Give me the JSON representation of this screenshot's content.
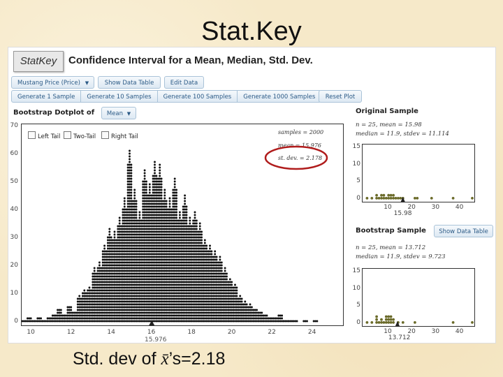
{
  "slide": {
    "title": "Stat.Key",
    "caption_prefix": "Std. dev of ",
    "caption_symbol": "x̄",
    "caption_suffix": "’s=2.18"
  },
  "app": {
    "logo": "StatKey",
    "title": "Confidence Interval for a Mean, Median, Std. Dev.",
    "dataset_select": "Mustang Price (Price)",
    "show_data_table": "Show Data Table",
    "edit_data": "Edit Data",
    "generate_buttons": [
      "Generate 1 Sample",
      "Generate 10 Samples",
      "Generate 100 Samples",
      "Generate 1000 Samples"
    ],
    "reset_plot": "Reset Plot",
    "dotplot_label": "Bootstrap Dotplot of",
    "statistic_select": "Mean",
    "tails": [
      "Left Tail",
      "Two-Tail",
      "Right Tail"
    ],
    "summary": [
      "samples = 2000",
      "mean = 15.976",
      "st. dev. = 2.178"
    ],
    "highlight_color": "#b01c1c",
    "dot_color": "#111111",
    "sample_dot_color": "#6b6b2a"
  },
  "original_sample": {
    "label": "Original Sample",
    "line1": "n = 25, mean = 15.98",
    "line2": "median = 11.9, stdev = 11.114",
    "marker": "15.98"
  },
  "bootstrap_sample": {
    "label": "Bootstrap Sample",
    "show_data_table": "Show Data Table",
    "line1": "n = 25, mean = 13.712",
    "line2": "median = 11.9, stdev = 9.723",
    "marker": "13.712"
  },
  "chart_data": [
    {
      "type": "scatter",
      "title": "",
      "x_ticks": [
        "10",
        "12",
        "14",
        "16",
        "18",
        "20",
        "22",
        "24"
      ],
      "y_ticks": [
        "0",
        "10",
        "20",
        "30",
        "40",
        "50",
        "60",
        "70"
      ],
      "xlim": [
        9.5,
        25.5
      ],
      "ylim": [
        0,
        70
      ],
      "marker_label": "15.976",
      "bin_width": 0.25,
      "bins_x": [
        9.5,
        9.75,
        10,
        10.25,
        10.5,
        10.75,
        11,
        11.25,
        11.5,
        11.75,
        12,
        12.25,
        12.5,
        12.75,
        13,
        13.25,
        13.5,
        13.75,
        14,
        14.25,
        14.5,
        14.75,
        15,
        15.25,
        15.5,
        15.75,
        16,
        16.25,
        16.5,
        16.75,
        17,
        17.25,
        17.5,
        17.75,
        18,
        18.25,
        18.5,
        18.75,
        19,
        19.25,
        19.5,
        19.75,
        20,
        20.25,
        20.5,
        20.75,
        21,
        21.25,
        21.5,
        21.75,
        22,
        22.25,
        22.5,
        22.75,
        23,
        23.25,
        23.5,
        23.75,
        24,
        24.25,
        24.5,
        24.75,
        25,
        25.25
      ],
      "counts": [
        1,
        2,
        1,
        2,
        1,
        2,
        3,
        5,
        3,
        6,
        4,
        10,
        12,
        13,
        20,
        22,
        28,
        34,
        33,
        38,
        45,
        62,
        48,
        40,
        55,
        50,
        58,
        57,
        48,
        45,
        52,
        40,
        46,
        38,
        40,
        36,
        30,
        28,
        26,
        24,
        20,
        16,
        14,
        10,
        8,
        7,
        5,
        4,
        3,
        2,
        2,
        3,
        1,
        1,
        1,
        0,
        1,
        0,
        1,
        0,
        0,
        0,
        0,
        0
      ]
    },
    {
      "type": "scatter",
      "title": "Original Sample",
      "x_ticks": [
        "10",
        "20",
        "30",
        "40"
      ],
      "y_ticks": [
        "0",
        "5",
        "10",
        "15"
      ],
      "xlim": [
        0,
        45
      ],
      "ylim": [
        0,
        15
      ],
      "points": [
        [
          1,
          1
        ],
        [
          3,
          1
        ],
        [
          5,
          1
        ],
        [
          6,
          1
        ],
        [
          7,
          1
        ],
        [
          8,
          1
        ],
        [
          9,
          1
        ],
        [
          10,
          1
        ],
        [
          11,
          1
        ],
        [
          12,
          1
        ],
        [
          13,
          1
        ],
        [
          14,
          1
        ],
        [
          15,
          1
        ],
        [
          16,
          1
        ],
        [
          21,
          1
        ],
        [
          22,
          1
        ],
        [
          28,
          1
        ],
        [
          37,
          1
        ],
        [
          45,
          1
        ],
        [
          5,
          2
        ],
        [
          7,
          2
        ],
        [
          8,
          2
        ],
        [
          10,
          2
        ],
        [
          11,
          2
        ],
        [
          12,
          2
        ]
      ],
      "marker_label": "15.98"
    },
    {
      "type": "scatter",
      "title": "Bootstrap Sample",
      "x_ticks": [
        "10",
        "20",
        "30",
        "40"
      ],
      "y_ticks": [
        "0",
        "5",
        "10",
        "15"
      ],
      "xlim": [
        0,
        45
      ],
      "ylim": [
        0,
        15
      ],
      "points": [
        [
          1,
          1
        ],
        [
          3,
          1
        ],
        [
          5,
          1
        ],
        [
          6,
          1
        ],
        [
          7,
          1
        ],
        [
          8,
          1
        ],
        [
          9,
          1
        ],
        [
          10,
          1
        ],
        [
          11,
          1
        ],
        [
          12,
          1
        ],
        [
          14,
          1
        ],
        [
          16,
          1
        ],
        [
          21,
          1
        ],
        [
          37,
          1
        ],
        [
          45,
          1
        ],
        [
          5,
          2
        ],
        [
          7,
          2
        ],
        [
          9,
          2
        ],
        [
          10,
          2
        ],
        [
          11,
          2
        ],
        [
          12,
          2
        ],
        [
          5,
          3
        ],
        [
          9,
          3
        ],
        [
          10,
          3
        ],
        [
          11,
          3
        ]
      ],
      "marker_label": "13.712"
    }
  ]
}
